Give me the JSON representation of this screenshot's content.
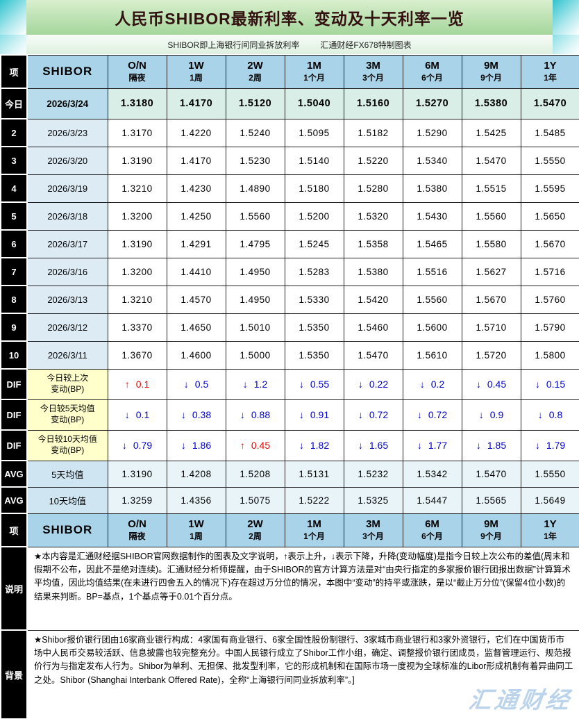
{
  "title": "人民币SHIBOR最新利率、变动及十天利率一览",
  "subtitle_left": "SHIBOR即上海银行间同业拆放利率",
  "subtitle_right": "汇通财经FX678特制图表",
  "watermark": "汇通财经",
  "colors": {
    "header_bg": "#a9d3e8",
    "title_bg": "#a4d69c",
    "label_bg": "#000000",
    "dif_label_bg": "#ffffcc",
    "up": "#e60000",
    "down": "#0000cc"
  },
  "chart_data": {
    "type": "table",
    "title": "人民币SHIBOR最新利率、变动及十天利率一览",
    "corner_label": "项",
    "name_header": "SHIBOR",
    "arrows": {
      "up": "↑",
      "down": "↓"
    },
    "tenors": [
      {
        "code": "O/N",
        "label": "隔夜"
      },
      {
        "code": "1W",
        "label": "1周"
      },
      {
        "code": "2W",
        "label": "2周"
      },
      {
        "code": "1M",
        "label": "1个月"
      },
      {
        "code": "3M",
        "label": "3个月"
      },
      {
        "code": "6M",
        "label": "6个月"
      },
      {
        "code": "9M",
        "label": "9个月"
      },
      {
        "code": "1Y",
        "label": "1年"
      }
    ],
    "daily_rows": [
      {
        "row_label": "今日",
        "date": "2026/3/24",
        "emphasis": true,
        "values": [
          "1.3180",
          "1.4170",
          "1.5120",
          "1.5040",
          "1.5160",
          "1.5270",
          "1.5380",
          "1.5470"
        ]
      },
      {
        "row_label": "2",
        "date": "2026/3/23",
        "emphasis": false,
        "values": [
          "1.3170",
          "1.4220",
          "1.5240",
          "1.5095",
          "1.5182",
          "1.5290",
          "1.5425",
          "1.5485"
        ]
      },
      {
        "row_label": "3",
        "date": "2026/3/20",
        "emphasis": false,
        "values": [
          "1.3190",
          "1.4170",
          "1.5230",
          "1.5140",
          "1.5220",
          "1.5340",
          "1.5470",
          "1.5550"
        ]
      },
      {
        "row_label": "4",
        "date": "2026/3/19",
        "emphasis": false,
        "values": [
          "1.3210",
          "1.4230",
          "1.4890",
          "1.5180",
          "1.5280",
          "1.5380",
          "1.5515",
          "1.5595"
        ]
      },
      {
        "row_label": "5",
        "date": "2026/3/18",
        "emphasis": false,
        "values": [
          "1.3200",
          "1.4250",
          "1.5560",
          "1.5200",
          "1.5320",
          "1.5430",
          "1.5560",
          "1.5650"
        ]
      },
      {
        "row_label": "6",
        "date": "2026/3/17",
        "emphasis": false,
        "values": [
          "1.3190",
          "1.4291",
          "1.4795",
          "1.5245",
          "1.5358",
          "1.5465",
          "1.5580",
          "1.5670"
        ]
      },
      {
        "row_label": "7",
        "date": "2026/3/16",
        "emphasis": false,
        "values": [
          "1.3200",
          "1.4410",
          "1.4950",
          "1.5283",
          "1.5380",
          "1.5516",
          "1.5627",
          "1.5716"
        ]
      },
      {
        "row_label": "8",
        "date": "2026/3/13",
        "emphasis": false,
        "values": [
          "1.3210",
          "1.4570",
          "1.4950",
          "1.5330",
          "1.5420",
          "1.5560",
          "1.5670",
          "1.5760"
        ]
      },
      {
        "row_label": "9",
        "date": "2026/3/12",
        "emphasis": false,
        "values": [
          "1.3370",
          "1.4650",
          "1.5010",
          "1.5350",
          "1.5460",
          "1.5600",
          "1.5710",
          "1.5790"
        ]
      },
      {
        "row_label": "10",
        "date": "2026/3/11",
        "emphasis": false,
        "values": [
          "1.3670",
          "1.4600",
          "1.5000",
          "1.5350",
          "1.5470",
          "1.5610",
          "1.5720",
          "1.5800"
        ]
      }
    ],
    "dif_rows": [
      {
        "row_label": "DIF",
        "name_line1": "今日较上次",
        "name_line2": "变动(BP)",
        "cells": [
          {
            "dir": "up",
            "value": "0.1"
          },
          {
            "dir": "down",
            "value": "0.5"
          },
          {
            "dir": "down",
            "value": "1.2"
          },
          {
            "dir": "down",
            "value": "0.55"
          },
          {
            "dir": "down",
            "value": "0.22"
          },
          {
            "dir": "down",
            "value": "0.2"
          },
          {
            "dir": "down",
            "value": "0.45"
          },
          {
            "dir": "down",
            "value": "0.15"
          }
        ]
      },
      {
        "row_label": "DIF",
        "name_line1": "今日较5天均值",
        "name_line2": "变动(BP)",
        "cells": [
          {
            "dir": "down",
            "value": "0.1"
          },
          {
            "dir": "down",
            "value": "0.38"
          },
          {
            "dir": "down",
            "value": "0.88"
          },
          {
            "dir": "down",
            "value": "0.91"
          },
          {
            "dir": "down",
            "value": "0.72"
          },
          {
            "dir": "down",
            "value": "0.72"
          },
          {
            "dir": "down",
            "value": "0.9"
          },
          {
            "dir": "down",
            "value": "0.8"
          }
        ]
      },
      {
        "row_label": "DIF",
        "name_line1": "今日较10天均值",
        "name_line2": "变动(BP)",
        "cells": [
          {
            "dir": "down",
            "value": "0.79"
          },
          {
            "dir": "down",
            "value": "1.86"
          },
          {
            "dir": "up",
            "value": "0.45"
          },
          {
            "dir": "down",
            "value": "1.82"
          },
          {
            "dir": "down",
            "value": "1.65"
          },
          {
            "dir": "down",
            "value": "1.77"
          },
          {
            "dir": "down",
            "value": "1.85"
          },
          {
            "dir": "down",
            "value": "1.79"
          }
        ]
      }
    ],
    "avg_rows": [
      {
        "row_label": "AVG",
        "name": "5天均值",
        "values": [
          "1.3190",
          "1.4208",
          "1.5208",
          "1.5131",
          "1.5232",
          "1.5342",
          "1.5470",
          "1.5550"
        ]
      },
      {
        "row_label": "AVG",
        "name": "10天均值",
        "values": [
          "1.3259",
          "1.4356",
          "1.5075",
          "1.5222",
          "1.5325",
          "1.5447",
          "1.5565",
          "1.5649"
        ]
      }
    ],
    "notes": [
      {
        "row_label": "说明",
        "text": "★本内容是汇通财经据SHIBOR官网数据制作的图表及文字说明，↑表示上升，↓表示下降，升降(变动幅度)是指今日较上次公布的差值(周末和假期不公布，因此不是绝对连续)。汇通财经分析师提醒，由于SHIBOR的官方计算方法是对“由央行指定的多家报价银行团报出数据”计算算术平均值，因此均值结果(在未进行四舍五入的情况下)存在超过万分位的情况，本图中“变动”的持平或涨跌，是以“截止万分位”(保留4位小数)的结果来判断。BP=基点，1个基点等于0.01个百分点。"
      },
      {
        "row_label": "背景",
        "text": "★Shibor报价银行团由16家商业银行构成：4家国有商业银行、6家全国性股份制银行、3家城市商业银行和3家外资银行，它们在中国货币市场中人民币交易较活跃、信息披露也较完整充分。中国人民银行成立了Shibor工作小组，确定、调整报价银行团成员，监督管理运行、规范报价行为与指定发布人行为。Shibor为单利、无担保、批发型利率，它的形成机制和在国际市场一度视为全球标准的Libor形成机制有着异曲同工之处。Shibor (Shanghai Interbank Offered Rate)，全称“上海银行间同业拆放利率”。]"
      }
    ]
  }
}
